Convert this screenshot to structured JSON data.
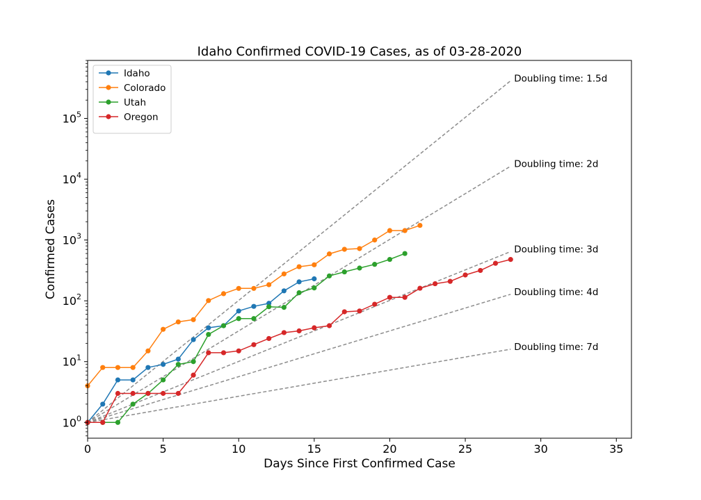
{
  "chart_data": {
    "type": "line",
    "title": "Idaho Confirmed COVID-19 Cases, as of 03-28-2020",
    "xlabel": "Days Since First Confirmed Case",
    "ylabel": "Confirmed Cases",
    "xlim": [
      0,
      36
    ],
    "ylim": [
      0.55,
      900000
    ],
    "yscale": "log",
    "grid": false,
    "legend_position": "top-left",
    "x_ticks": [
      0,
      5,
      10,
      15,
      20,
      25,
      30,
      35
    ],
    "y_ticks": [
      {
        "value": 1,
        "base": "10",
        "exp": "0"
      },
      {
        "value": 10,
        "base": "10",
        "exp": "1"
      },
      {
        "value": 100,
        "base": "10",
        "exp": "2"
      },
      {
        "value": 1000,
        "base": "10",
        "exp": "3"
      },
      {
        "value": 10000,
        "base": "10",
        "exp": "4"
      },
      {
        "value": 100000,
        "base": "10",
        "exp": "5"
      }
    ],
    "series": [
      {
        "name": "Idaho",
        "color": "#1f77b4",
        "y": [
          1,
          2,
          5,
          5,
          8,
          9,
          11,
          23,
          36,
          39,
          68,
          81,
          91,
          146,
          205,
          230
        ]
      },
      {
        "name": "Colorado",
        "color": "#ff7f0e",
        "y": [
          4,
          8,
          8,
          8,
          15,
          34,
          45,
          49,
          101,
          131,
          160,
          160,
          184,
          277,
          364,
          391,
          591,
          704,
          723,
          1000,
          1430,
          1430,
          1740
        ]
      },
      {
        "name": "Utah",
        "color": "#2ca02c",
        "y": [
          1,
          1,
          1,
          2,
          3,
          5,
          9,
          10,
          28,
          39,
          51,
          51,
          80,
          78,
          136,
          163,
          257,
          299,
          346,
          398,
          480,
          600
        ]
      },
      {
        "name": "Oregon",
        "color": "#d62728",
        "y": [
          1,
          1,
          3,
          3,
          3,
          3,
          3,
          6,
          14,
          14,
          15,
          19,
          24,
          30,
          32,
          36,
          39,
          66,
          68,
          88,
          114,
          114,
          161,
          191,
          209,
          266,
          316,
          414,
          479
        ]
      }
    ],
    "doubling_lines": [
      {
        "label": "Doubling time: 1.5d",
        "days": 1.5
      },
      {
        "label": "Doubling time: 2d",
        "days": 2
      },
      {
        "label": "Doubling time: 3d",
        "days": 3
      },
      {
        "label": "Doubling time: 4d",
        "days": 4
      },
      {
        "label": "Doubling time: 7d",
        "days": 7
      }
    ],
    "doubling_x_end": 28,
    "guide_color": "#8c8c8c"
  }
}
